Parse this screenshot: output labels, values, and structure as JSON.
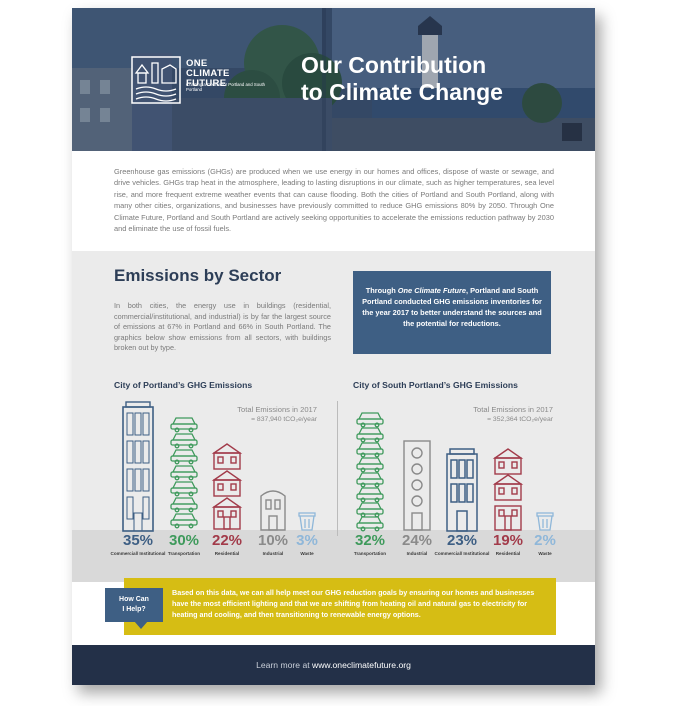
{
  "header": {
    "title_line1": "Our Contribution",
    "title_line2": "to Climate Change",
    "logo_line1": "ONE",
    "logo_line2": "CLIMATE",
    "logo_line3": "FUTURE",
    "logo_tagline": "Charting a Course for Portland and South Portland"
  },
  "intro": "Greenhouse gas emissions (GHGs) are produced when we use energy in our homes and offices, dispose of waste or sewage, and drive vehicles. GHGs trap heat in the atmosphere, leading to lasting disruptions in our climate, such as higher temperatures, sea level rise, and more frequent extreme weather events that can cause flooding. Both the cities of Portland and South Portland, along with many other cities, organizations, and businesses have previously committed to reduce GHG emissions 80% by 2050. Through One Climate Future, Portland and South Portland are actively seeking opportunities to accelerate the emissions reduction pathway by 2030 and eliminate the use of fossil fuels.",
  "sector": {
    "heading": "Emissions by Sector",
    "lead": "In both cities, the energy use in buildings (residential, commercial/institutional, and industrial) is by far the largest source of emissions at 67% in Portland and 66% in South Portland. The graphics below show emissions from all sectors, with buildings broken out by type.",
    "callout_pre": "Through ",
    "callout_em": "One Climate Future",
    "callout_post": ", Portland and South Portland conducted GHG emissions inventories for the year 2017 to better understand the sources and the potential for reductions."
  },
  "portland": {
    "title": "City of Portland’s GHG Emissions",
    "total_label": "Total Emissions in 2017",
    "total_value": "= 837,940 tCO₂e/year",
    "items": [
      {
        "pct": "35%",
        "label": "Commercial/ Institutional",
        "color": "#3e5f84"
      },
      {
        "pct": "30%",
        "label": "Transportation",
        "color": "#3f9a5c"
      },
      {
        "pct": "22%",
        "label": "Residential",
        "color": "#a23b4a"
      },
      {
        "pct": "10%",
        "label": "Industrial",
        "color": "#8a8a8a"
      },
      {
        "pct": "3%",
        "label": "Waste",
        "color": "#8fb7d9"
      }
    ]
  },
  "south_portland": {
    "title": "City of South Portland’s GHG Emissions",
    "total_label": "Total Emissions in 2017",
    "total_value": "= 352,364 tCO₂e/year",
    "items": [
      {
        "pct": "32%",
        "label": "Transportation",
        "color": "#3f9a5c"
      },
      {
        "pct": "24%",
        "label": "Industrial",
        "color": "#8a8a8a"
      },
      {
        "pct": "23%",
        "label": "Commercial/ Institutional",
        "color": "#3e5f84"
      },
      {
        "pct": "19%",
        "label": "Residential",
        "color": "#a23b4a"
      },
      {
        "pct": "2%",
        "label": "Waste",
        "color": "#8fb7d9"
      }
    ]
  },
  "help": {
    "bubble_line1": "How Can",
    "bubble_line2": "I Help?",
    "text": "Based on this data, we can all help meet our GHG reduction goals by ensuring our homes and businesses have the most efficient lighting and that we are shifting from heating oil and natural gas to electricity for heating and cooling, and then transitioning to renewable energy options."
  },
  "footer": {
    "pre": "Learn more at ",
    "url": "www.oneclimatefuture.org"
  },
  "colors": {
    "navy": "#2d3e57",
    "blue": "#3e5f84",
    "green": "#3f9a5c",
    "red": "#a23b4a",
    "gray": "#8a8a8a",
    "light_blue": "#8fb7d9",
    "yellow": "#d6bd14",
    "footer_bg": "#233048"
  }
}
